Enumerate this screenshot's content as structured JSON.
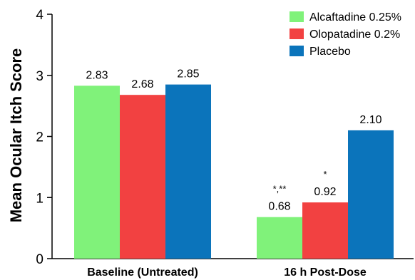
{
  "chart_data": {
    "type": "bar",
    "title": "",
    "xlabel": "",
    "ylabel": "Mean Ocular Itch Score",
    "ylim": [
      0,
      4
    ],
    "yticks": [
      "0",
      "1",
      "2",
      "3",
      "4"
    ],
    "categories": [
      "Baseline (Untreated)",
      "16 h Post-Dose"
    ],
    "series": [
      {
        "name": "Alcaftadine 0.25%",
        "color": "#80f27a",
        "values": [
          2.83,
          0.68
        ],
        "labels": [
          "2.83",
          "0.68"
        ],
        "annotations": [
          "",
          "*,**"
        ]
      },
      {
        "name": "Olopatadine 0.2%",
        "color": "#f24141",
        "values": [
          2.68,
          0.92
        ],
        "labels": [
          "2.68",
          "0.92"
        ],
        "annotations": [
          "",
          "*"
        ]
      },
      {
        "name": "Placebo",
        "color": "#0b74bb",
        "values": [
          2.85,
          2.1
        ],
        "labels": [
          "2.85",
          "2.10"
        ],
        "annotations": [
          "",
          ""
        ]
      }
    ],
    "legend_position": "top-right",
    "grid": false
  }
}
